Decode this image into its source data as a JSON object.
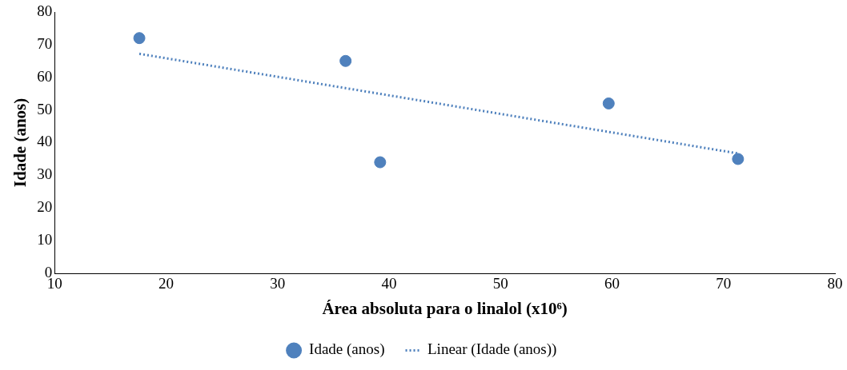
{
  "chart_data": {
    "type": "scatter",
    "xlabel": "Área absoluta para o linalol (x10⁶)",
    "ylabel": "Idade (anos)",
    "xlim": [
      10,
      80
    ],
    "xticks": [
      10,
      20,
      30,
      40,
      50,
      60,
      70,
      80
    ],
    "ylim": [
      0,
      80
    ],
    "yticks": [
      0,
      10,
      20,
      30,
      40,
      50,
      60,
      70,
      80
    ],
    "grid": false,
    "legend": "bottom",
    "marker": "circle",
    "series": [
      {
        "name": "Idade (anos)",
        "type": "scatter",
        "color": "#4f81bd",
        "x": [
          17.6,
          36.1,
          39.2,
          59.7,
          71.3
        ],
        "values": [
          72,
          65,
          34,
          52,
          35
        ]
      },
      {
        "name": "Linear (Idade (anos))",
        "type": "line",
        "color": "#4f81bd",
        "line_style": "dotted",
        "marker": "none",
        "x": [
          17.6,
          71.3
        ],
        "values": [
          67.2,
          36.7
        ]
      }
    ]
  }
}
